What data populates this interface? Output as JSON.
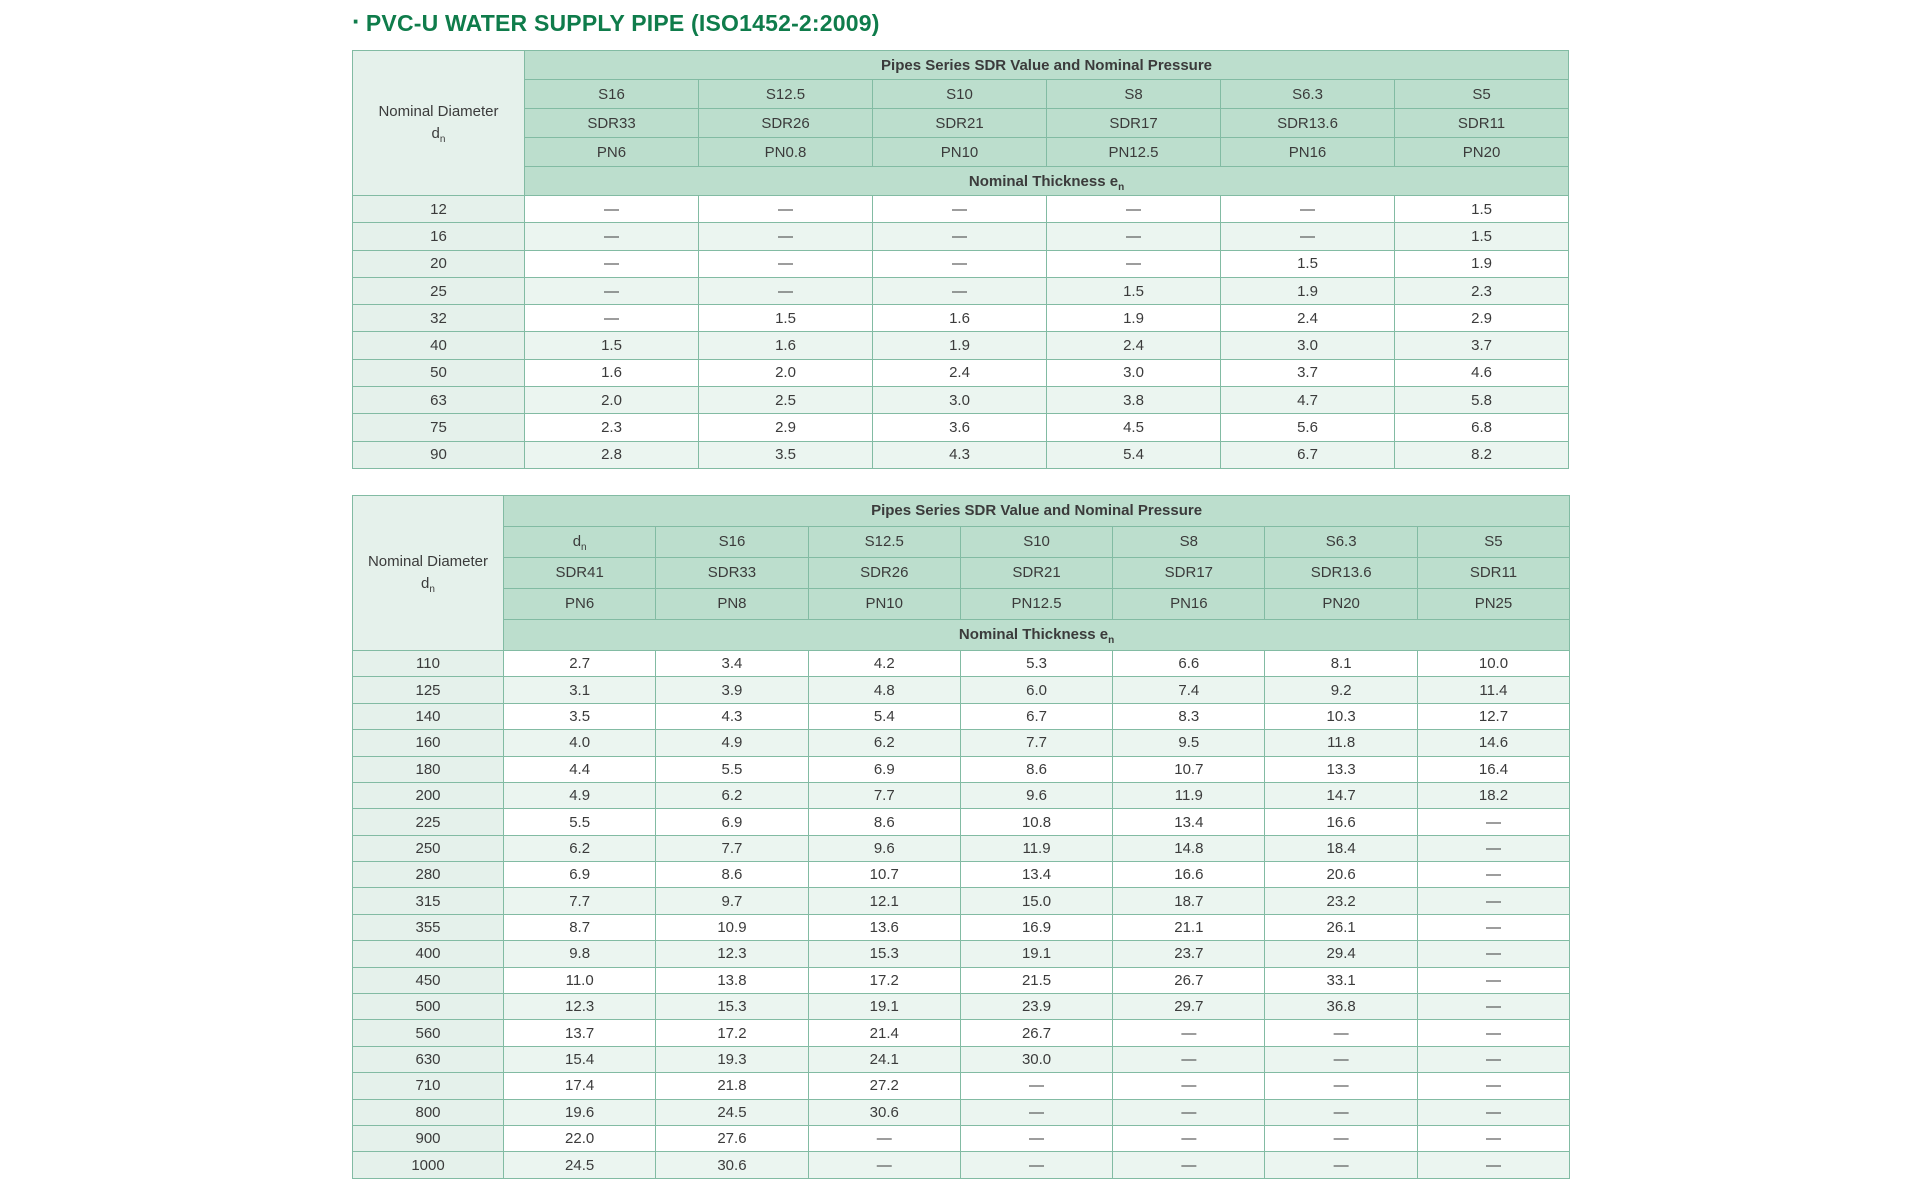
{
  "header": {
    "bullet": "·",
    "title": "PVC-U WATER SUPPLY PIPE (ISO1452-2:2009)"
  },
  "colors": {
    "title-green": "#0f7c4b",
    "header-green": "#bcdecd",
    "stripe-mint": "#ebf5f0",
    "left-mint": "#e5f1eb",
    "border-green": "#82bba3",
    "border-dark": "#5fa886",
    "cell-text": "#3b3b3b",
    "head-text": "#2d2d2d"
  },
  "tables": [
    {
      "name": "pipe-table-small-diameters",
      "corner": {
        "line1": "Nominal Diameter",
        "line2": {
          "base": "d",
          "sub": "n"
        }
      },
      "span_header": "Pipes Series SDR Value and Nominal Pressure",
      "series": [
        "S16",
        "S12.5",
        "S10",
        "S8",
        "S6.3",
        "S5"
      ],
      "sdr": [
        "SDR33",
        "SDR26",
        "SDR21",
        "SDR17",
        "SDR13.6",
        "SDR11"
      ],
      "pn": [
        "PN6",
        "PN0.8",
        "PN10",
        "PN12.5",
        "PN16",
        "PN20"
      ],
      "thickness_header": {
        "base": "Nominal Thickness e",
        "sub": "n"
      },
      "rows": [
        {
          "dn": "12",
          "values": [
            "—",
            "—",
            "—",
            "—",
            "—",
            "1.5"
          ]
        },
        {
          "dn": "16",
          "values": [
            "—",
            "—",
            "—",
            "—",
            "—",
            "1.5"
          ]
        },
        {
          "dn": "20",
          "values": [
            "—",
            "—",
            "—",
            "—",
            "1.5",
            "1.9"
          ]
        },
        {
          "dn": "25",
          "values": [
            "—",
            "—",
            "—",
            "1.5",
            "1.9",
            "2.3"
          ]
        },
        {
          "dn": "32",
          "values": [
            "—",
            "1.5",
            "1.6",
            "1.9",
            "2.4",
            "2.9"
          ]
        },
        {
          "dn": "40",
          "values": [
            "1.5",
            "1.6",
            "1.9",
            "2.4",
            "3.0",
            "3.7"
          ]
        },
        {
          "dn": "50",
          "values": [
            "1.6",
            "2.0",
            "2.4",
            "3.0",
            "3.7",
            "4.6"
          ]
        },
        {
          "dn": "63",
          "values": [
            "2.0",
            "2.5",
            "3.0",
            "3.8",
            "4.7",
            "5.8"
          ]
        },
        {
          "dn": "75",
          "values": [
            "2.3",
            "2.9",
            "3.6",
            "4.5",
            "5.6",
            "6.8"
          ]
        },
        {
          "dn": "90",
          "values": [
            "2.8",
            "3.5",
            "4.3",
            "5.4",
            "6.7",
            "8.2"
          ]
        }
      ]
    },
    {
      "name": "pipe-table-large-diameters",
      "corner": {
        "line1": "Nominal Diameter",
        "line2": {
          "base": "d",
          "sub": "n"
        }
      },
      "span_header": "Pipes Series SDR Value and Nominal Pressure",
      "series": [
        {
          "base": "d",
          "sub": "n"
        },
        "S16",
        "S12.5",
        "S10",
        "S8",
        "S6.3",
        "S5"
      ],
      "sdr": [
        "SDR41",
        "SDR33",
        "SDR26",
        "SDR21",
        "SDR17",
        "SDR13.6",
        "SDR11"
      ],
      "pn": [
        "PN6",
        "PN8",
        "PN10",
        "PN12.5",
        "PN16",
        "PN20",
        "PN25"
      ],
      "thickness_header": {
        "base": "Nominal Thickness e",
        "sub": "n"
      },
      "rows": [
        {
          "dn": "110",
          "values": [
            "2.7",
            "3.4",
            "4.2",
            "5.3",
            "6.6",
            "8.1",
            "10.0"
          ]
        },
        {
          "dn": "125",
          "values": [
            "3.1",
            "3.9",
            "4.8",
            "6.0",
            "7.4",
            "9.2",
            "11.4"
          ]
        },
        {
          "dn": "140",
          "values": [
            "3.5",
            "4.3",
            "5.4",
            "6.7",
            "8.3",
            "10.3",
            "12.7"
          ]
        },
        {
          "dn": "160",
          "values": [
            "4.0",
            "4.9",
            "6.2",
            "7.7",
            "9.5",
            "11.8",
            "14.6"
          ]
        },
        {
          "dn": "180",
          "values": [
            "4.4",
            "5.5",
            "6.9",
            "8.6",
            "10.7",
            "13.3",
            "16.4"
          ]
        },
        {
          "dn": "200",
          "values": [
            "4.9",
            "6.2",
            "7.7",
            "9.6",
            "11.9",
            "14.7",
            "18.2"
          ]
        },
        {
          "dn": "225",
          "values": [
            "5.5",
            "6.9",
            "8.6",
            "10.8",
            "13.4",
            "16.6",
            "—"
          ]
        },
        {
          "dn": "250",
          "values": [
            "6.2",
            "7.7",
            "9.6",
            "11.9",
            "14.8",
            "18.4",
            "—"
          ]
        },
        {
          "dn": "280",
          "values": [
            "6.9",
            "8.6",
            "10.7",
            "13.4",
            "16.6",
            "20.6",
            "—"
          ]
        },
        {
          "dn": "315",
          "values": [
            "7.7",
            "9.7",
            "12.1",
            "15.0",
            "18.7",
            "23.2",
            "—"
          ]
        },
        {
          "dn": "355",
          "values": [
            "8.7",
            "10.9",
            "13.6",
            "16.9",
            "21.1",
            "26.1",
            "—"
          ]
        },
        {
          "dn": "400",
          "values": [
            "9.8",
            "12.3",
            "15.3",
            "19.1",
            "23.7",
            "29.4",
            "—"
          ]
        },
        {
          "dn": "450",
          "values": [
            "11.0",
            "13.8",
            "17.2",
            "21.5",
            "26.7",
            "33.1",
            "—"
          ]
        },
        {
          "dn": "500",
          "values": [
            "12.3",
            "15.3",
            "19.1",
            "23.9",
            "29.7",
            "36.8",
            "—"
          ]
        },
        {
          "dn": "560",
          "values": [
            "13.7",
            "17.2",
            "21.4",
            "26.7",
            "—",
            "—",
            "—"
          ]
        },
        {
          "dn": "630",
          "values": [
            "15.4",
            "19.3",
            "24.1",
            "30.0",
            "—",
            "—",
            "—"
          ]
        },
        {
          "dn": "710",
          "values": [
            "17.4",
            "21.8",
            "27.2",
            "—",
            "—",
            "—",
            "—"
          ]
        },
        {
          "dn": "800",
          "values": [
            "19.6",
            "24.5",
            "30.6",
            "—",
            "—",
            "—",
            "—"
          ]
        },
        {
          "dn": "900",
          "values": [
            "22.0",
            "27.6",
            "—",
            "—",
            "—",
            "—",
            "—"
          ]
        },
        {
          "dn": "1000",
          "values": [
            "24.5",
            "30.6",
            "—",
            "—",
            "—",
            "—",
            "—"
          ]
        }
      ]
    }
  ]
}
